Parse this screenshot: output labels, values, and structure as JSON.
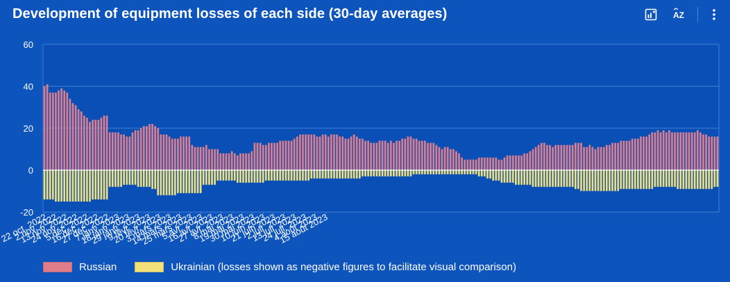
{
  "header": {
    "title": "Development of equipment losses of each side (30-day averages)"
  },
  "toolbar": {
    "icons": [
      "chart-insight-icon",
      "sort-az-icon",
      "more-options-icon"
    ],
    "sort_label": "AZ"
  },
  "colors": {
    "background": "#0d55bd",
    "plot_background": "#0a4fb6",
    "russian": "#e07d8a",
    "ukrainian": "#f2e07a",
    "grid": "#3f7fd2",
    "text": "#ffffff"
  },
  "chart_data": {
    "type": "bar",
    "title": "Development of equipment losses of each side (30-day averages)",
    "xlabel": "",
    "ylabel": "",
    "ylim": [
      -20,
      60
    ],
    "yticks": [
      60,
      40,
      20,
      0,
      -20
    ],
    "stacked": "diverging",
    "days_per_bar": 3,
    "legend_position": "bottom-left",
    "x_tick_labels": [
      "22 oct. 2022",
      "2 nov. 2022",
      "13 nov. 2022",
      "24 nov. 2022",
      "5 déc. 2022",
      "16 déc. 2022",
      "27 déc. 2022",
      "7 janv. 2023",
      "18 janv. 2023",
      "29 janv. 2023",
      "9 févr. 2023",
      "20 févr. 2023",
      "3 mars 2023",
      "14 mars 2023",
      "25 mars 2023",
      "5 avr. 2023",
      "16 avr. 2023",
      "27 avr. 2023",
      "8 mai 2023",
      "19 mai 2023",
      "30 mai 2023",
      "10 juin 2023",
      "21 juin 2023",
      "2 juil. 2023",
      "13 juil. 2023",
      "24 juil. 2023",
      "4 août 2023",
      "15 août 2023"
    ],
    "series": [
      {
        "name": "Russian",
        "values": [
          40,
          41,
          37,
          37,
          37,
          38,
          39,
          38,
          37,
          34,
          32,
          31,
          29,
          28,
          26,
          25,
          23,
          24,
          24,
          24,
          25,
          26,
          26,
          18,
          18,
          18,
          18,
          17,
          17,
          16,
          16,
          18,
          19,
          19,
          20,
          21,
          21,
          22,
          22,
          21,
          20,
          17,
          17,
          17,
          16,
          15,
          15,
          15,
          16,
          16,
          16,
          16,
          12,
          11,
          11,
          11,
          11,
          12,
          10,
          10,
          10,
          10,
          8,
          8,
          8,
          8,
          9,
          8,
          7,
          8,
          8,
          8,
          8,
          9,
          13,
          13,
          13,
          12,
          12,
          13,
          13,
          13,
          13,
          14,
          14,
          14,
          14,
          14,
          15,
          16,
          17,
          17,
          17,
          17,
          17,
          17,
          16,
          16,
          17,
          17,
          16,
          17,
          17,
          17,
          16,
          16,
          15,
          15,
          16,
          17,
          16,
          15,
          15,
          14,
          14,
          13,
          13,
          13,
          14,
          14,
          14,
          13,
          14,
          13,
          14,
          14,
          15,
          15,
          16,
          16,
          15,
          15,
          14,
          14,
          14,
          13,
          13,
          13,
          12,
          11,
          10,
          11,
          11,
          10,
          10,
          9,
          8,
          6,
          5,
          5,
          5,
          5,
          5,
          6,
          6,
          6,
          6,
          6,
          6,
          6,
          5,
          5,
          6,
          7,
          7,
          7,
          7,
          7,
          7,
          8,
          8,
          9,
          10,
          11,
          12,
          13,
          13,
          12,
          12,
          11,
          12,
          12,
          12,
          12,
          12,
          12,
          12,
          13,
          13,
          13,
          11,
          11,
          12,
          11,
          10,
          11,
          11,
          11,
          12,
          12,
          13,
          13,
          13,
          14,
          14,
          14,
          14,
          15,
          15,
          15,
          16,
          16,
          16,
          17,
          18,
          18,
          19,
          18,
          19,
          18,
          19,
          18,
          18,
          18,
          18,
          18,
          18,
          18,
          18,
          18,
          19,
          18,
          17,
          17,
          16,
          16,
          16,
          16
        ]
      },
      {
        "name": "Ukrainian (losses shown as negative figures to facilitate visual comparison)",
        "values": [
          -14,
          -14,
          -14,
          -14,
          -15,
          -15,
          -15,
          -15,
          -15,
          -15,
          -15,
          -15,
          -15,
          -15,
          -15,
          -15,
          -15,
          -14,
          -14,
          -14,
          -14,
          -14,
          -14,
          -8,
          -8,
          -8,
          -8,
          -8,
          -7,
          -7,
          -7,
          -7,
          -7,
          -8,
          -8,
          -8,
          -8,
          -8,
          -9,
          -9,
          -12,
          -12,
          -12,
          -12,
          -12,
          -12,
          -12,
          -11,
          -11,
          -11,
          -11,
          -11,
          -11,
          -11,
          -11,
          -11,
          -7,
          -7,
          -7,
          -7,
          -7,
          -5,
          -5,
          -5,
          -5,
          -5,
          -5,
          -5,
          -6,
          -6,
          -6,
          -6,
          -6,
          -6,
          -6,
          -6,
          -6,
          -6,
          -5,
          -5,
          -5,
          -5,
          -5,
          -5,
          -5,
          -5,
          -5,
          -5,
          -5,
          -5,
          -5,
          -5,
          -5,
          -5,
          -4,
          -4,
          -4,
          -4,
          -4,
          -4,
          -4,
          -4,
          -4,
          -4,
          -4,
          -4,
          -4,
          -4,
          -4,
          -4,
          -4,
          -4,
          -3,
          -3,
          -3,
          -3,
          -3,
          -3,
          -3,
          -3,
          -3,
          -3,
          -3,
          -3,
          -3,
          -3,
          -3,
          -3,
          -3,
          -3,
          -2,
          -2,
          -2,
          -2,
          -2,
          -2,
          -2,
          -2,
          -2,
          -2,
          -2,
          -2,
          -2,
          -2,
          -2,
          -2,
          -2,
          -2,
          -2,
          -2,
          -2,
          -2,
          -2,
          -3,
          -3,
          -3,
          -4,
          -4,
          -5,
          -5,
          -5,
          -6,
          -6,
          -6,
          -6,
          -6,
          -7,
          -7,
          -7,
          -7,
          -7,
          -7,
          -8,
          -8,
          -8,
          -8,
          -8,
          -8,
          -8,
          -8,
          -8,
          -8,
          -8,
          -8,
          -8,
          -8,
          -8,
          -9,
          -9,
          -10,
          -10,
          -10,
          -10,
          -10,
          -10,
          -10,
          -10,
          -10,
          -10,
          -10,
          -10,
          -10,
          -10,
          -9,
          -9,
          -9,
          -9,
          -9,
          -9,
          -9,
          -9,
          -9,
          -9,
          -9,
          -9,
          -8,
          -8,
          -8,
          -8,
          -8,
          -8,
          -8,
          -8,
          -9,
          -9,
          -9,
          -9,
          -9,
          -9,
          -9,
          -9,
          -9,
          -9,
          -9,
          -9,
          -9,
          -8,
          -8,
          -8,
          -8,
          -8,
          -8,
          -8
        ]
      }
    ]
  },
  "legend": {
    "russian_label": "Russian",
    "ukrainian_label": "Ukrainian (losses shown as negative figures to facilitate visual comparison)"
  }
}
